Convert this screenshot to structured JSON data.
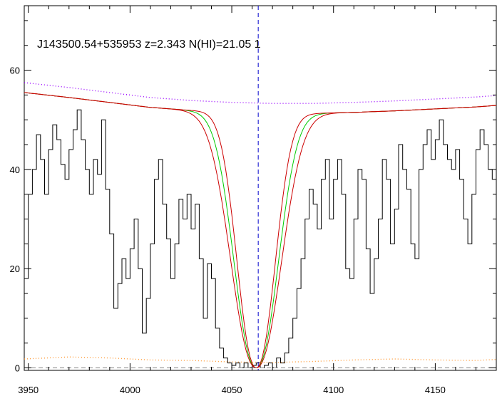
{
  "chart_data": {
    "type": "line",
    "title": "J143500.54+535953 z=2.343 N(HI)=21.05 1",
    "xlabel": "",
    "ylabel": "",
    "xlim": [
      3948,
      4180
    ],
    "ylim": [
      -0.5,
      73
    ],
    "x_ticks": [
      3950,
      4000,
      4050,
      4100,
      4150
    ],
    "x_tick_labels": [
      "3950",
      "4000",
      "4050",
      "4100",
      "4150"
    ],
    "y_ticks": [
      0,
      20,
      40,
      60
    ],
    "y_tick_labels": [
      "0",
      "20",
      "40",
      "60"
    ],
    "grid": false,
    "marker_line": {
      "x": 4063,
      "color": "#0000cc",
      "style": "dashed"
    },
    "colors": {
      "flux": "#000000",
      "model": "#00cc00",
      "model_bounds": "#cc0000",
      "continuum": "#9900ff",
      "error": "#ff9933",
      "zero_line": "#888888",
      "marker": "#0000cc"
    },
    "series": [
      {
        "key": "flux",
        "style": "step",
        "points": [
          [
            3948,
            18
          ],
          [
            3950,
            35
          ],
          [
            3952,
            40
          ],
          [
            3954,
            47
          ],
          [
            3956,
            42
          ],
          [
            3958,
            35
          ],
          [
            3960,
            44
          ],
          [
            3962,
            49
          ],
          [
            3964,
            46
          ],
          [
            3966,
            41
          ],
          [
            3968,
            38
          ],
          [
            3970,
            44
          ],
          [
            3972,
            48
          ],
          [
            3974,
            52
          ],
          [
            3976,
            46
          ],
          [
            3978,
            40
          ],
          [
            3980,
            35
          ],
          [
            3982,
            42
          ],
          [
            3984,
            39
          ],
          [
            3986,
            50
          ],
          [
            3988,
            36
          ],
          [
            3990,
            27
          ],
          [
            3992,
            12
          ],
          [
            3994,
            17
          ],
          [
            3996,
            22
          ],
          [
            3998,
            18
          ],
          [
            4000,
            24
          ],
          [
            4002,
            30
          ],
          [
            4004,
            20
          ],
          [
            4006,
            7
          ],
          [
            4008,
            14
          ],
          [
            4010,
            25
          ],
          [
            4012,
            38
          ],
          [
            4014,
            42
          ],
          [
            4016,
            33
          ],
          [
            4018,
            26
          ],
          [
            4020,
            18
          ],
          [
            4022,
            25
          ],
          [
            4024,
            34
          ],
          [
            4026,
            30
          ],
          [
            4028,
            35
          ],
          [
            4030,
            28
          ],
          [
            4032,
            33
          ],
          [
            4034,
            22
          ],
          [
            4036,
            10
          ],
          [
            4038,
            21
          ],
          [
            4040,
            18
          ],
          [
            4042,
            8
          ],
          [
            4044,
            4
          ],
          [
            4046,
            2
          ],
          [
            4048,
            1
          ],
          [
            4050,
            0.5
          ],
          [
            4052,
            1
          ],
          [
            4054,
            0
          ],
          [
            4056,
            1
          ],
          [
            4058,
            0
          ],
          [
            4060,
            0.5
          ],
          [
            4062,
            1
          ],
          [
            4064,
            0
          ],
          [
            4066,
            0.5
          ],
          [
            4068,
            1
          ],
          [
            4070,
            0
          ],
          [
            4072,
            2
          ],
          [
            4074,
            1
          ],
          [
            4076,
            3
          ],
          [
            4078,
            6
          ],
          [
            4080,
            10
          ],
          [
            4082,
            16
          ],
          [
            4084,
            22
          ],
          [
            4086,
            30
          ],
          [
            4088,
            36
          ],
          [
            4090,
            33
          ],
          [
            4092,
            28
          ],
          [
            4094,
            38
          ],
          [
            4096,
            42
          ],
          [
            4098,
            30
          ],
          [
            4100,
            38
          ],
          [
            4102,
            42
          ],
          [
            4104,
            35
          ],
          [
            4106,
            20
          ],
          [
            4108,
            18
          ],
          [
            4110,
            30
          ],
          [
            4112,
            40
          ],
          [
            4114,
            38
          ],
          [
            4116,
            24
          ],
          [
            4118,
            15
          ],
          [
            4120,
            22
          ],
          [
            4122,
            30
          ],
          [
            4124,
            42
          ],
          [
            4126,
            38
          ],
          [
            4128,
            25
          ],
          [
            4130,
            32
          ],
          [
            4132,
            45
          ],
          [
            4134,
            40
          ],
          [
            4136,
            36
          ],
          [
            4138,
            25
          ],
          [
            4140,
            22
          ],
          [
            4142,
            40
          ],
          [
            4144,
            45
          ],
          [
            4146,
            48
          ],
          [
            4148,
            42
          ],
          [
            4150,
            46
          ],
          [
            4152,
            50
          ],
          [
            4154,
            45
          ],
          [
            4156,
            42
          ],
          [
            4158,
            40
          ],
          [
            4160,
            44
          ],
          [
            4162,
            38
          ],
          [
            4164,
            30
          ],
          [
            4166,
            25
          ],
          [
            4168,
            35
          ],
          [
            4170,
            44
          ],
          [
            4172,
            48
          ],
          [
            4174,
            45
          ],
          [
            4176,
            40
          ],
          [
            4178,
            38
          ],
          [
            4180,
            38
          ]
        ]
      },
      {
        "key": "model",
        "style": "line",
        "params": {
          "continuum_at_4050": 53.2,
          "center": 4062,
          "width": 14.5,
          "depth": 53.2
        }
      },
      {
        "key": "model_bounds",
        "style": "line",
        "params": {
          "continuum_at_4050": 53.2,
          "center": 4062,
          "width": 12.5,
          "depth": 53.2
        }
      },
      {
        "key": "model_bounds_upper",
        "style": "line",
        "params": {
          "continuum_at_4050": 53.2,
          "center": 4062,
          "width": 16.5,
          "depth": 53.2
        }
      },
      {
        "key": "continuum",
        "style": "dotted",
        "points": [
          [
            3948,
            57.5
          ],
          [
            3970,
            56.5
          ],
          [
            3990,
            55.5
          ],
          [
            4010,
            54.5
          ],
          [
            4030,
            53.9
          ],
          [
            4050,
            53.5
          ],
          [
            4070,
            53.3
          ],
          [
            4090,
            53.3
          ],
          [
            4110,
            53.5
          ],
          [
            4130,
            53.8
          ],
          [
            4150,
            54.2
          ],
          [
            4170,
            54.6
          ],
          [
            4180,
            54.9
          ]
        ]
      },
      {
        "key": "error",
        "style": "dotted",
        "points": [
          [
            3948,
            1.8
          ],
          [
            3970,
            2.2
          ],
          [
            3990,
            2.0
          ],
          [
            4010,
            1.6
          ],
          [
            4030,
            1.5
          ],
          [
            4050,
            1.2
          ],
          [
            4070,
            1.1
          ],
          [
            4090,
            1.3
          ],
          [
            4110,
            1.6
          ],
          [
            4130,
            1.8
          ],
          [
            4150,
            1.6
          ],
          [
            4170,
            1.5
          ],
          [
            4180,
            1.7
          ]
        ]
      },
      {
        "key": "zero_line",
        "style": "dashed",
        "points": [
          [
            3948,
            0
          ],
          [
            4180,
            0
          ]
        ]
      }
    ]
  }
}
